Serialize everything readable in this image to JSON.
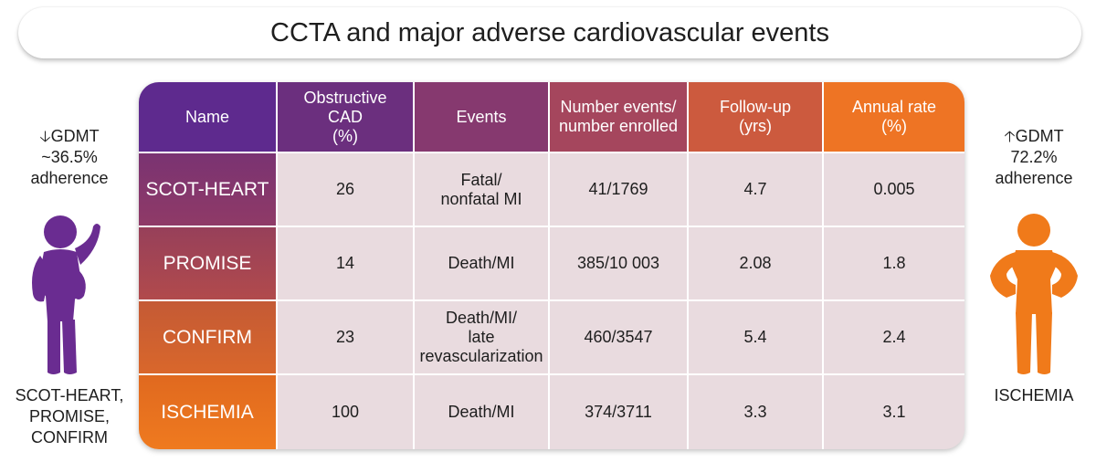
{
  "title": "CCTA and major adverse cardiovascular events",
  "left_panel": {
    "arrow": "down",
    "line1": "GDMT",
    "line2": "~36.5%",
    "line3": "adherence",
    "trials": [
      "SCOT-HEART,",
      "PROMISE,",
      "CONFIRM"
    ],
    "figure_color": "#6a2c91"
  },
  "right_panel": {
    "arrow": "up",
    "line1": "GDMT",
    "line2": "72.2%",
    "line3": "adherence",
    "trials": [
      "ISCHEMIA"
    ],
    "figure_color": "#f07a1a"
  },
  "table": {
    "headers": [
      "Name",
      "Obstructive\nCAD\n(%)",
      "Events",
      "Number events/\nnumber enrolled",
      "Follow-up\n(yrs)",
      "Annual rate\n(%)"
    ],
    "rows": [
      {
        "name": "SCOT-HEART",
        "cad": "26",
        "events": "Fatal/\nnonfatal MI",
        "counts": "41/1769",
        "followup": "4.7",
        "annual": "0.005"
      },
      {
        "name": "PROMISE",
        "cad": "14",
        "events": "Death/MI",
        "counts": "385/10 003",
        "followup": "2.08",
        "annual": "1.8"
      },
      {
        "name": "CONFIRM",
        "cad": "23",
        "events": "Death/MI/\nlate\nrevascularization",
        "counts": "460/3547",
        "followup": "5.4",
        "annual": "2.4"
      },
      {
        "name": "ISCHEMIA",
        "cad": "100",
        "events": "Death/MI",
        "counts": "374/3711",
        "followup": "3.3",
        "annual": "3.1"
      }
    ]
  }
}
